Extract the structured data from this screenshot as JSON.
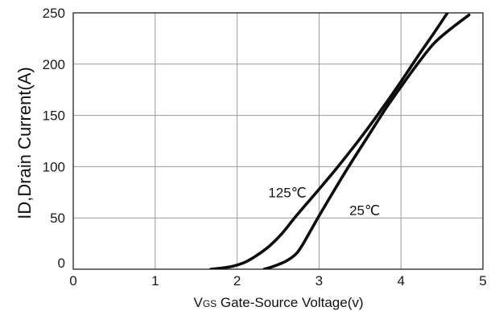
{
  "chart_data": {
    "type": "line",
    "xlabel_sub_v": "V",
    "xlabel_sub_gs": "GS",
    "xlabel_rest": " Gate-Source Voltage(v)",
    "ylabel": "ID,Drain Current(A)",
    "xlim": [
      0,
      5
    ],
    "ylim": [
      0,
      250
    ],
    "x_ticks": [
      "0",
      "1",
      "2",
      "3",
      "4",
      "5"
    ],
    "y_ticks": [
      "0",
      "50",
      "100",
      "150",
      "200",
      "250"
    ],
    "grid": true,
    "series": [
      {
        "name": "125℃",
        "x": [
          1.68,
          1.8,
          1.95,
          2.1,
          2.25,
          2.4,
          2.55,
          2.7,
          2.85,
          3.0,
          3.2,
          3.4,
          3.6,
          3.8,
          4.0,
          4.2,
          4.4,
          4.6
        ],
        "y": [
          0,
          1,
          3,
          7,
          14,
          23,
          35,
          50,
          64,
          78,
          97,
          117,
          138,
          160,
          183,
          207,
          230,
          254
        ]
      },
      {
        "name": "25℃",
        "x": [
          2.33,
          2.45,
          2.6,
          2.72,
          2.8,
          2.9,
          3.0,
          3.2,
          3.4,
          3.6,
          3.8,
          4.0,
          4.2,
          4.4,
          4.6,
          4.83
        ],
        "y": [
          0,
          3,
          8,
          15,
          24,
          38,
          52,
          79,
          105,
          130,
          155,
          178,
          200,
          220,
          234,
          248
        ]
      }
    ],
    "annotations": [
      {
        "text": "125℃",
        "x": 2.38,
        "y": 70
      },
      {
        "text": "25℃",
        "x": 3.37,
        "y": 53
      }
    ]
  }
}
